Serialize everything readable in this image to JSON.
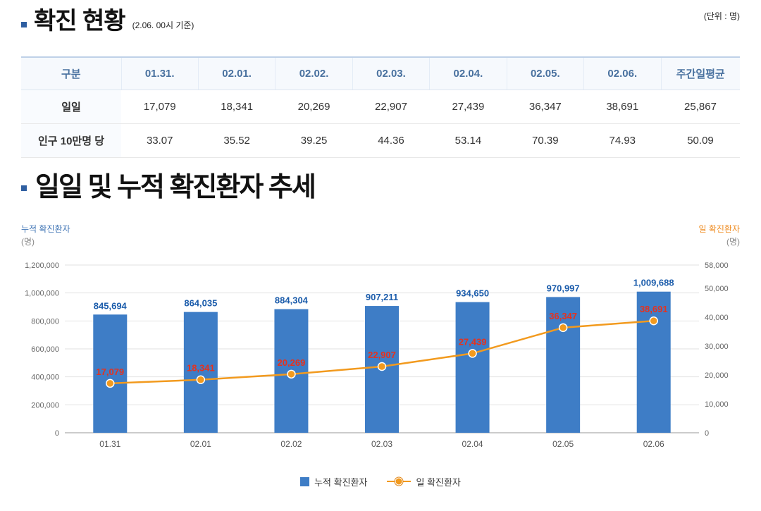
{
  "header": {
    "title": "확진 현황",
    "subtitle": "(2.06. 00시 기준)",
    "unit_label": "(단위 : 명)"
  },
  "table": {
    "columns": [
      "구분",
      "01.31.",
      "02.01.",
      "02.02.",
      "02.03.",
      "02.04.",
      "02.05.",
      "02.06.",
      "주간일평균"
    ],
    "rows": [
      {
        "label": "일일",
        "values": [
          "17,079",
          "18,341",
          "20,269",
          "22,907",
          "27,439",
          "36,347",
          "38,691",
          "25,867"
        ]
      },
      {
        "label": "인구 10만명 당",
        "values": [
          "33.07",
          "35.52",
          "39.25",
          "44.36",
          "53.14",
          "70.39",
          "74.93",
          "50.09"
        ]
      }
    ]
  },
  "chart_section": {
    "title": "일일 및 누적 확진환자 추세"
  },
  "chart_data": {
    "type": "bar+line",
    "categories": [
      "01.31",
      "02.01",
      "02.02",
      "02.03",
      "02.04",
      "02.05",
      "02.06"
    ],
    "series": [
      {
        "name": "누적 확진환자",
        "type": "bar",
        "axis": "left",
        "color": "#3e7dc6",
        "values": [
          845694,
          864035,
          884304,
          907211,
          934650,
          970997,
          1009688
        ]
      },
      {
        "name": "일 확진환자",
        "type": "line",
        "axis": "right",
        "color": "#f29a1e",
        "values": [
          17079,
          18341,
          20269,
          22907,
          27439,
          36347,
          38691
        ]
      }
    ],
    "left_axis": {
      "title": "누적 확진환자",
      "unit": "(명)",
      "min": 0,
      "max": 1200000,
      "ticks": [
        0,
        200000,
        400000,
        600000,
        800000,
        1000000,
        1200000
      ]
    },
    "right_axis": {
      "title": "일 확진환자",
      "unit": "(명)",
      "min": 0,
      "max": 58000,
      "ticks": [
        0,
        10000,
        20000,
        30000,
        40000,
        50000,
        58000
      ]
    },
    "grid": true,
    "legend_position": "bottom",
    "bar_label_color": "#1b5cab",
    "line_label_color": "#e5321e",
    "grid_color": "#e2e2e2",
    "axis_line_color": "#9a9a9a",
    "tick_label_color": "#666666"
  }
}
